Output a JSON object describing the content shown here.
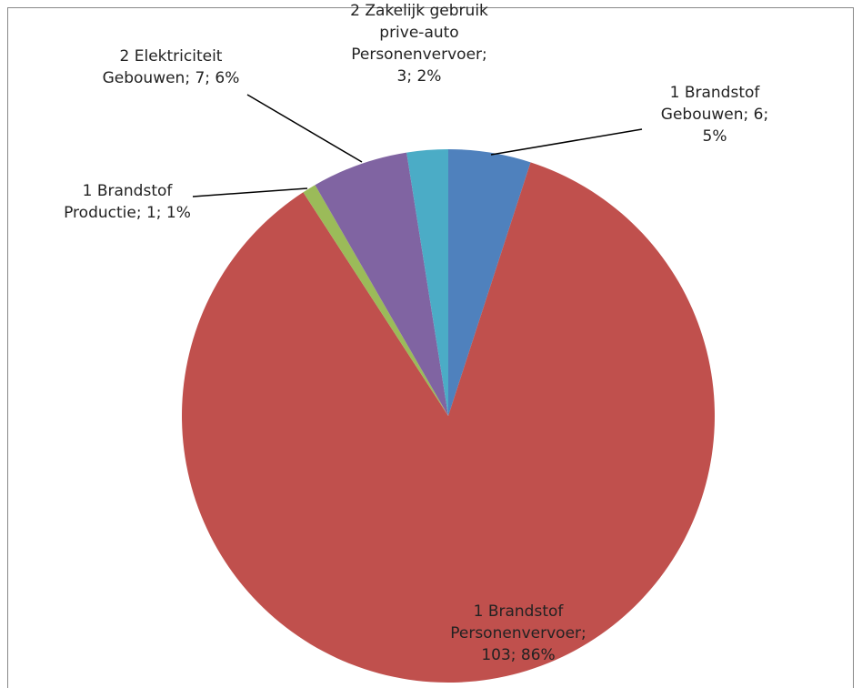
{
  "chart_data": {
    "type": "pie",
    "values": [
      6,
      103,
      1,
      7,
      3
    ],
    "value_labels": [
      "1 Brandstof Gebouwen; 6; 5%",
      "1 Brandstof Personenvervoer; 103; 86%",
      "1 Brandstof Productie; 1; 1%",
      "2 Elektriciteit Gebouwen; 7; 6%",
      "2 Zakelijk gebruik prive-auto Personenvervoer; 3; 2%"
    ],
    "colors": [
      "#4f81bd",
      "#c0504d",
      "#9bbb59",
      "#8064a2",
      "#4bacc6"
    ]
  }
}
